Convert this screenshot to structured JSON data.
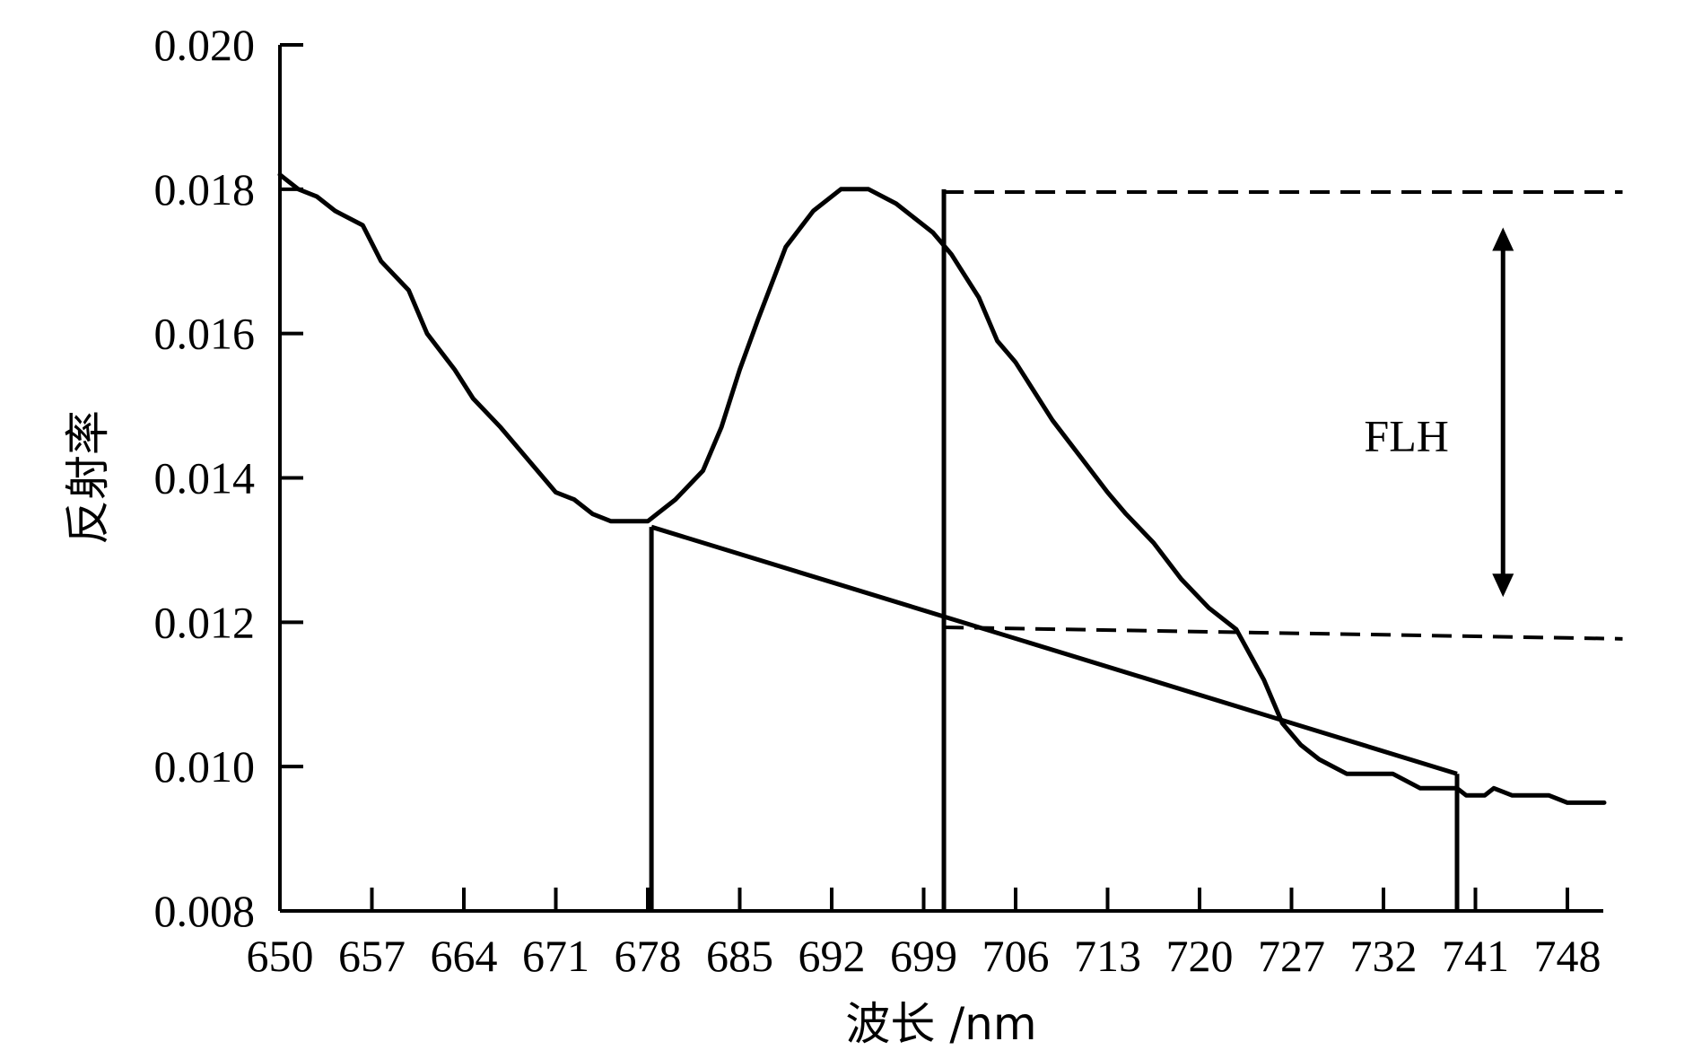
{
  "chart_data": {
    "type": "line",
    "title": "",
    "xlabel": "波长 /nm",
    "ylabel": "反射率",
    "x_ticks": [
      "650",
      "657",
      "664",
      "671",
      "678",
      "685",
      "692",
      "699",
      "706",
      "713",
      "720",
      "727",
      "732",
      "741",
      "748"
    ],
    "ylim": [
      0.008,
      0.02
    ],
    "y_ticks": [
      0.008,
      0.01,
      0.012,
      0.014,
      0.016,
      0.018,
      0.02
    ],
    "y_tick_labels": [
      "0.008",
      "0.010",
      "0.012",
      "0.014",
      "0.016",
      "0.018",
      "0.020"
    ],
    "grid": false,
    "series": [
      {
        "style": "solid",
        "color": "#000000",
        "x_tick_pos": [
          0.0,
          0.1,
          0.2,
          0.4,
          0.6,
          0.9,
          1.1,
          1.4,
          1.6,
          1.9,
          2.1,
          2.4,
          2.8,
          3.0,
          3.2,
          3.4,
          3.6,
          3.8,
          4.0,
          4.1,
          4.3,
          4.6,
          4.8,
          5.0,
          5.2,
          5.5,
          5.8,
          6.1,
          6.4,
          6.7,
          6.9,
          7.1,
          7.3,
          7.4,
          7.6,
          7.8,
          8.0,
          8.2,
          8.4,
          8.7,
          9.0,
          9.2,
          9.5,
          9.8,
          10.1,
          10.4,
          10.7,
          10.9,
          11.1,
          11.3,
          11.6,
          11.9,
          12.1,
          12.4,
          12.6,
          12.8,
          12.9,
          13.1,
          13.2,
          13.4,
          13.6,
          13.8,
          14.0,
          14.2,
          14.4
        ],
        "y": [
          0.0182,
          0.0181,
          0.018,
          0.0179,
          0.0177,
          0.0175,
          0.017,
          0.0166,
          0.016,
          0.0155,
          0.0151,
          0.0147,
          0.0141,
          0.0138,
          0.0137,
          0.0135,
          0.0134,
          0.0134,
          0.0134,
          0.0135,
          0.0137,
          0.0141,
          0.0147,
          0.0155,
          0.0162,
          0.0172,
          0.0177,
          0.018,
          0.018,
          0.0178,
          0.0176,
          0.0174,
          0.0171,
          0.0169,
          0.0165,
          0.0159,
          0.0156,
          0.0152,
          0.0148,
          0.0143,
          0.0138,
          0.0135,
          0.0131,
          0.0126,
          0.0122,
          0.0119,
          0.0112,
          0.0106,
          0.0103,
          0.0101,
          0.0099,
          0.0099,
          0.0099,
          0.0097,
          0.0097,
          0.0097,
          0.0096,
          0.0096,
          0.0097,
          0.0096,
          0.0096,
          0.0096,
          0.0095,
          0.0095,
          0.0095
        ]
      }
    ],
    "baseline": {
      "from": [
        4.04,
        0.01332
      ],
      "to": [
        12.8,
        0.0099
      ]
    },
    "verticals": [
      {
        "x_tick_pos": 4.04,
        "y_top": 0.01332
      },
      {
        "x_tick_pos": 7.22,
        "y_top": 0.018
      },
      {
        "x_tick_pos": 12.8,
        "y_top": 0.0099
      }
    ],
    "dashed_lines": [
      {
        "from": [
          7.22,
          0.01796
        ],
        "to": [
          14.6,
          0.01796
        ]
      },
      {
        "from": [
          7.22,
          0.01193
        ],
        "to": [
          14.6,
          0.01177
        ]
      }
    ],
    "arrow": {
      "x_tick_pos": 13.3,
      "y_from": 0.01747,
      "y_to": 0.01235
    },
    "annotation": {
      "text": "FLH",
      "x_tick_pos": 12.25,
      "y": 0.0146
    }
  }
}
